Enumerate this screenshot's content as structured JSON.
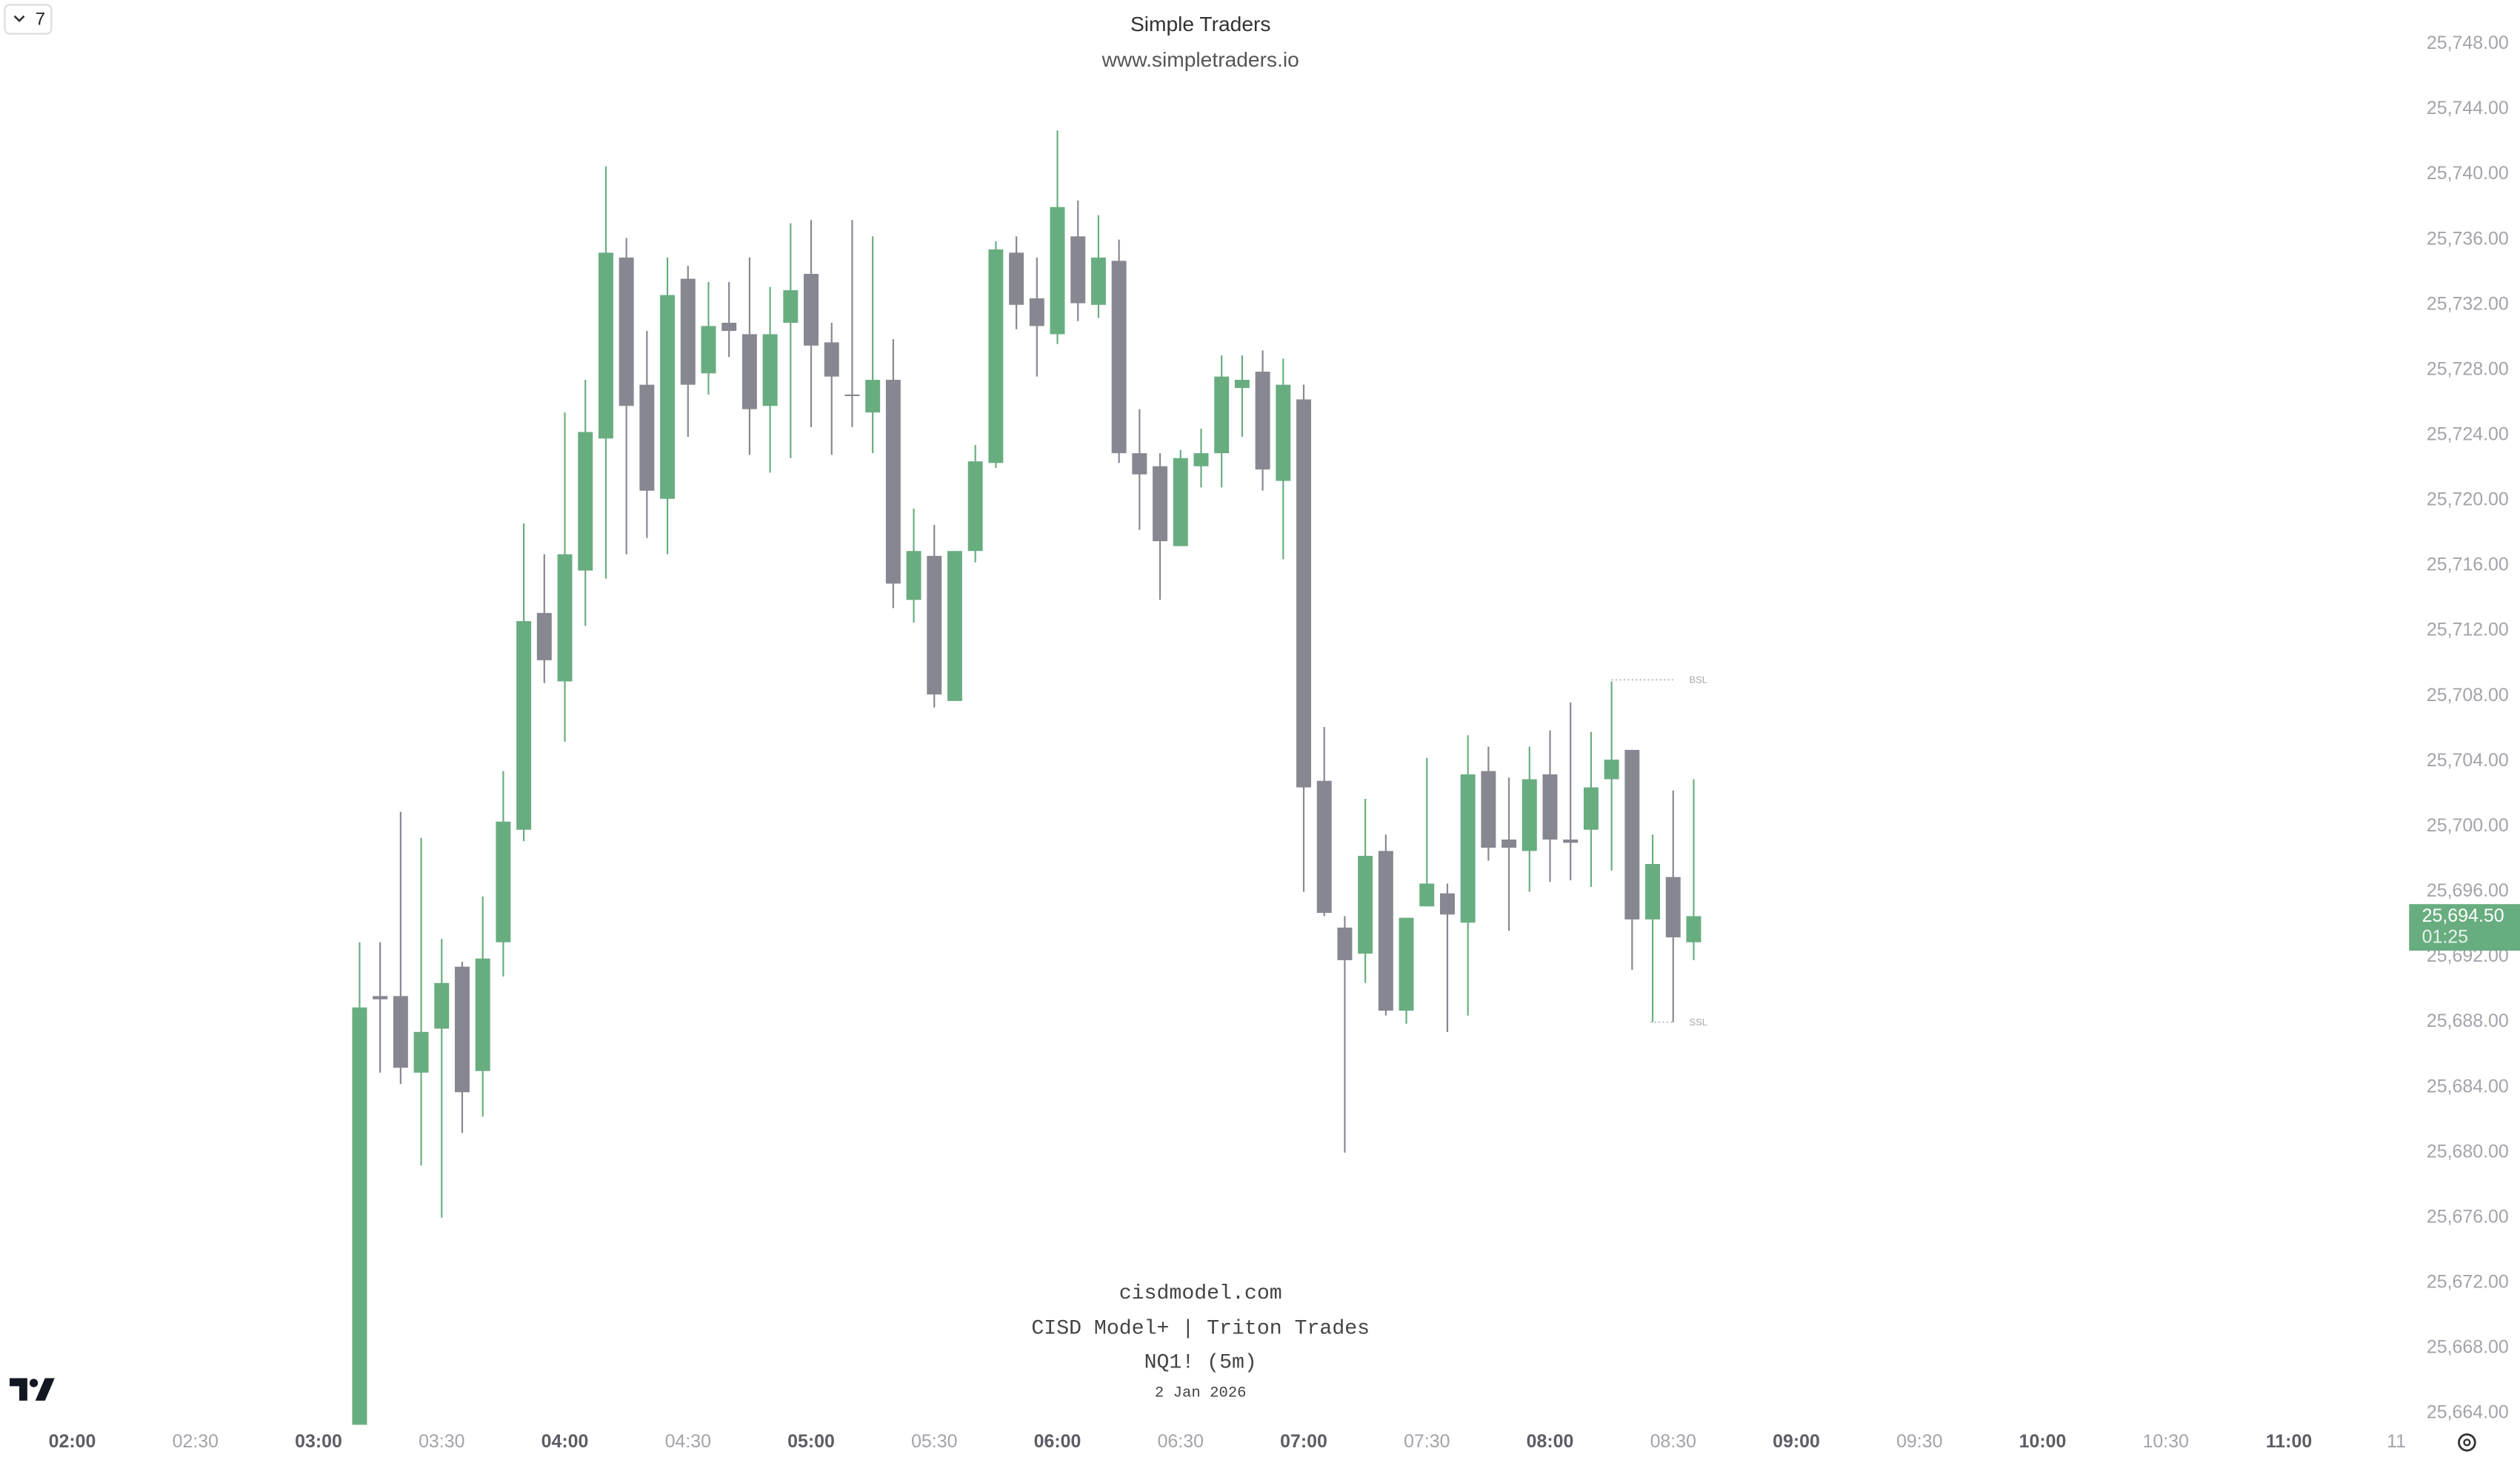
{
  "toolbar": {
    "indicators": "7"
  },
  "chart_data": {
    "type": "candlestick",
    "title": "Simple Traders",
    "subtitle": "www.simpletraders.io",
    "annotations": [
      "cisdmodel.com",
      "CISD Model+ | Triton Trades",
      "NQ1! (5m)",
      "2 Jan 2026"
    ],
    "up_color": "#68ad80",
    "down_color": "#878791",
    "x": [
      190,
      195,
      200,
      205,
      210,
      215,
      220,
      225,
      230,
      235,
      240,
      245,
      250,
      255,
      260,
      265,
      270,
      275,
      280,
      285,
      290,
      295,
      300,
      305,
      310,
      315,
      320,
      325,
      330,
      335,
      340,
      345,
      350,
      355,
      360,
      365,
      370,
      375,
      380,
      385,
      390,
      395,
      400,
      405,
      410,
      415,
      420,
      425,
      430,
      435,
      440,
      445,
      450,
      455,
      460,
      465,
      470,
      475,
      480,
      485,
      490,
      495,
      500,
      505,
      510,
      515
    ],
    "open": [
      25663,
      25689.6,
      25689.6,
      25684.9,
      25687.6,
      25691.4,
      25685.0,
      25692.9,
      25699.8,
      25713.1,
      25708.9,
      25715.7,
      25723.8,
      25734.9,
      25727.1,
      25720.1,
      25733.6,
      25727.8,
      25730.9,
      25730.2,
      25725.8,
      25730.9,
      25733.9,
      25729.7,
      25726.5,
      25725.4,
      25727.4,
      25713.9,
      25716.6,
      25707.7,
      25716.9,
      25722.3,
      25735.2,
      25732.4,
      25730.2,
      25736.2,
      25732.0,
      25734.7,
      25722.9,
      25722.1,
      25717.2,
      25722.1,
      25722.9,
      25726.9,
      25727.9,
      25721.2,
      25726.2,
      25702.8,
      25693.8,
      25692.2,
      25698.5,
      25688.7,
      25695.1,
      25695.9,
      25694.1,
      25703.4,
      25699.2,
      25698.5,
      25703.2,
      25699.2,
      25699.8,
      25702.9,
      25704.7,
      25694.3,
      25696.9,
      25692.9
    ],
    "high": [
      25692.9,
      25692.9,
      25700.9,
      25699.3,
      25693.1,
      25691.7,
      25695.7,
      25703.4,
      25718.6,
      25716.7,
      25725.4,
      25727.4,
      25740.5,
      25736.1,
      25730.4,
      25734.9,
      25734.4,
      25733.4,
      25733.4,
      25734.9,
      25733.1,
      25737.0,
      25737.2,
      25730.9,
      25737.2,
      25736.2,
      25729.9,
      25719.5,
      25718.5,
      25716.9,
      25723.4,
      25735.9,
      25736.2,
      25734.9,
      25742.7,
      25738.4,
      25737.5,
      25736.0,
      25725.6,
      25722.9,
      25723.1,
      25724.4,
      25728.9,
      25728.9,
      25729.2,
      25728.7,
      25727.1,
      25706.1,
      25694.5,
      25701.7,
      25699.5,
      25694.4,
      25704.2,
      25696.5,
      25705.6,
      25704.9,
      25703.0,
      25704.9,
      25705.9,
      25707.6,
      25705.8,
      25708.9,
      25704.7,
      25699.5,
      25702.2,
      25702.9
    ],
    "low": [
      25662,
      25684.9,
      25684.2,
      25679.2,
      25676.0,
      25681.2,
      25682.2,
      25690.8,
      25699.1,
      25708.8,
      25705.2,
      25712.3,
      25715.2,
      25716.7,
      25717.7,
      25716.7,
      25723.9,
      25726.5,
      25728.8,
      25722.8,
      25721.7,
      25722.6,
      25724.5,
      25722.8,
      25724.5,
      25722.9,
      25713.4,
      25712.5,
      25707.3,
      25707.7,
      25716.2,
      25722.0,
      25730.5,
      25727.6,
      25729.6,
      25731.0,
      25731.2,
      25722.3,
      25718.2,
      25713.9,
      25717.2,
      25720.8,
      25720.8,
      25723.9,
      25720.6,
      25716.4,
      25696.0,
      25694.5,
      25680.0,
      25690.4,
      25688.4,
      25687.9,
      25695.1,
      25687.4,
      25688.4,
      25697.9,
      25693.6,
      25696.0,
      25696.6,
      25696.7,
      25696.3,
      25697.3,
      25691.2,
      25688.0,
      25688.0,
      25691.8
    ],
    "close": [
      25688.9,
      25689.4,
      25685.2,
      25687.4,
      25690.4,
      25683.7,
      25691.9,
      25700.3,
      25712.6,
      25710.2,
      25716.7,
      25724.2,
      25735.2,
      25725.8,
      25720.6,
      25732.6,
      25727.1,
      25730.7,
      25730.4,
      25725.6,
      25730.2,
      25732.9,
      25729.5,
      25727.6,
      25726.5,
      25727.4,
      25714.9,
      25716.9,
      25708.1,
      25716.9,
      25722.4,
      25735.4,
      25732.0,
      25730.7,
      25738.0,
      25732.1,
      25734.9,
      25722.9,
      25721.6,
      25717.5,
      25722.6,
      25722.9,
      25727.6,
      25727.4,
      25721.9,
      25727.1,
      25702.4,
      25694.7,
      25691.8,
      25698.2,
      25688.7,
      25694.4,
      25696.5,
      25694.6,
      25703.2,
      25698.7,
      25698.7,
      25702.9,
      25699.2,
      25699.0,
      25702.4,
      25704.1,
      25694.3,
      25697.7,
      25693.2,
      25694.5
    ],
    "xlim": [
      102.4,
      688.5
    ],
    "xticks": [
      {
        "value": 120,
        "label": "02:00"
      },
      {
        "value": 150,
        "label": "02:30"
      },
      {
        "value": 180,
        "label": "03:00"
      },
      {
        "value": 210,
        "label": "03:30"
      },
      {
        "value": 240,
        "label": "04:00"
      },
      {
        "value": 270,
        "label": "04:30"
      },
      {
        "value": 300,
        "label": "05:00"
      },
      {
        "value": 330,
        "label": "05:30"
      },
      {
        "value": 360,
        "label": "06:00"
      },
      {
        "value": 390,
        "label": "06:30"
      },
      {
        "value": 420,
        "label": "07:00"
      },
      {
        "value": 450,
        "label": "07:30"
      },
      {
        "value": 480,
        "label": "08:00"
      },
      {
        "value": 510,
        "label": "08:30"
      },
      {
        "value": 540,
        "label": "09:00"
      },
      {
        "value": 570,
        "label": "09:30"
      },
      {
        "value": 600,
        "label": "10:00"
      },
      {
        "value": 630,
        "label": "10:30"
      },
      {
        "value": 660,
        "label": "11:00"
      },
      {
        "value": 690,
        "label": "11"
      }
    ],
    "ylim": [
      25663.3,
      25750.7
    ],
    "yticks": [
      {
        "value": 25664,
        "label": "25,664.00"
      },
      {
        "value": 25668,
        "label": "25,668.00"
      },
      {
        "value": 25672,
        "label": "25,672.00"
      },
      {
        "value": 25676,
        "label": "25,676.00"
      },
      {
        "value": 25680,
        "label": "25,680.00"
      },
      {
        "value": 25684,
        "label": "25,684.00"
      },
      {
        "value": 25688,
        "label": "25,688.00"
      },
      {
        "value": 25692,
        "label": "25,692.00"
      },
      {
        "value": 25696,
        "label": "25,696.00"
      },
      {
        "value": 25700,
        "label": "25,700.00"
      },
      {
        "value": 25704,
        "label": "25,704.00"
      },
      {
        "value": 25708,
        "label": "25,708.00"
      },
      {
        "value": 25712,
        "label": "25,712.00"
      },
      {
        "value": 25716,
        "label": "25,716.00"
      },
      {
        "value": 25720,
        "label": "25,720.00"
      },
      {
        "value": 25724,
        "label": "25,724.00"
      },
      {
        "value": 25728,
        "label": "25,728.00"
      },
      {
        "value": 25732,
        "label": "25,732.00"
      },
      {
        "value": 25736,
        "label": "25,736.00"
      },
      {
        "value": 25740,
        "label": "25,740.00"
      },
      {
        "value": 25744,
        "label": "25,744.00"
      },
      {
        "value": 25748,
        "label": "25,748.00"
      }
    ],
    "levels": [
      {
        "label": "BSL",
        "value": 25709,
        "x": [
          495,
          510
        ]
      },
      {
        "label": "SSL",
        "value": 25688,
        "x": [
          504.5,
          510
        ]
      }
    ],
    "last_price": {
      "value": 25694.5,
      "label": "25,694.50"
    },
    "countdown": "01:25",
    "grid": false
  }
}
